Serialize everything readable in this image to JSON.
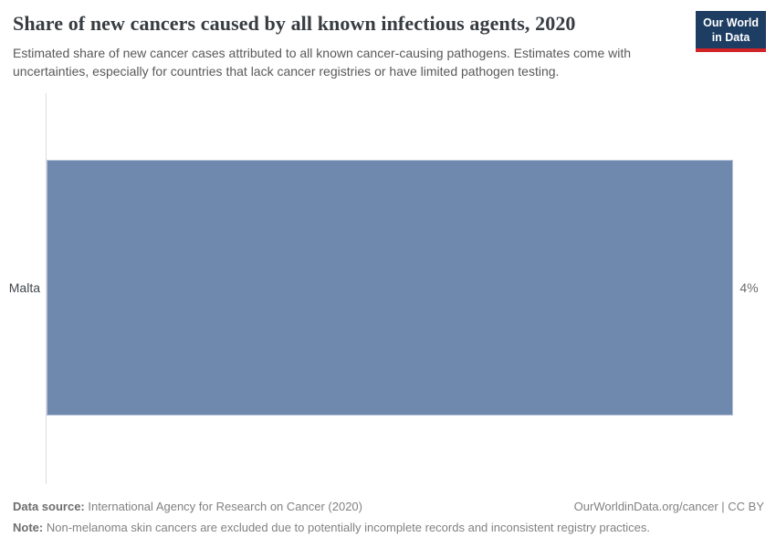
{
  "header": {
    "title": "Share of new cancers caused by all known infectious agents, 2020",
    "subtitle": "Estimated share of new cancer cases attributed to all known cancer-causing pathogens. Estimates come with uncertainties, especially for countries that lack cancer registries or have limited pathogen testing.",
    "logo": {
      "line1": "Our World",
      "line2": "in Data"
    }
  },
  "chart_data": {
    "type": "bar",
    "orientation": "horizontal",
    "title": "Share of new cancers caused by all known infectious agents, 2020",
    "categories": [
      "Malta"
    ],
    "values": [
      4
    ],
    "value_labels": [
      "4%"
    ],
    "unit": "%",
    "xlim": [
      0,
      4.2
    ],
    "grid": false,
    "legend_position": "none",
    "bar_color": "#6f88ae",
    "axis_color": "#dcdcdc"
  },
  "footer": {
    "data_source_label": "Data source:",
    "data_source_value": "International Agency for Research on Cancer (2020)",
    "attribution": "OurWorldinData.org/cancer | CC BY",
    "note_label": "Note:",
    "note_value": "Non-melanoma skin cancers are excluded due to potentially incomplete records and inconsistent registry practices."
  },
  "colors": {
    "title_text": "#373c41",
    "subtitle_text": "#595959",
    "logo_background": "#1d3d63",
    "logo_accent": "#d02427",
    "bar": "#6f88ae"
  }
}
